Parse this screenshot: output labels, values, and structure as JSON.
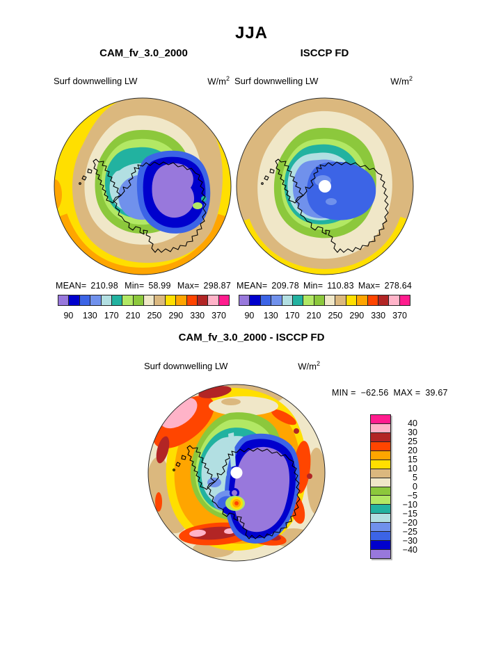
{
  "header": {
    "season_title": "JJA"
  },
  "panels": {
    "cam": {
      "title": "CAM_fv_3.0_2000",
      "var_label": "Surf downwelling LW",
      "units_base": "W/m",
      "units_exp": "2",
      "stats": {
        "mean_label": "MEAN=",
        "mean": "210.98",
        "min_label": "Min=",
        "min": "58.99",
        "max_label": "Max=",
        "max": "298.87"
      }
    },
    "isccp": {
      "title": "ISCCP FD",
      "var_label": "Surf downwelling LW",
      "units_base": "W/m",
      "units_exp": "2",
      "stats": {
        "mean_label": "MEAN=",
        "mean": "209.78",
        "min_label": "Min=",
        "min": "110.83",
        "max_label": "Max=",
        "max": "278.64"
      }
    },
    "diff": {
      "title": "CAM_fv_3.0_2000 - ISCCP FD",
      "var_label": "Surf downwelling LW",
      "units_base": "W/m",
      "units_exp": "2",
      "minmax": {
        "min_label": "MIN =",
        "min": "−62.56",
        "max_label": "MAX =",
        "max": "39.67"
      }
    }
  },
  "chart_data": [
    {
      "type": "heatmap",
      "subtype": "filled_contour_polar_map",
      "panel": "top_left",
      "title": "CAM_fv_3.0_2000",
      "variable": "Surf downwelling LW",
      "units": "W/m2",
      "season": "JJA",
      "projection": "south_polar_stereographic",
      "stats": {
        "mean": 210.98,
        "min": 58.99,
        "max": 298.87
      },
      "contour_levels": [
        90,
        110,
        130,
        150,
        170,
        190,
        210,
        230,
        250,
        270,
        290,
        310,
        330,
        350,
        370
      ],
      "colorbar_tick_labels": [
        "90",
        "130",
        "170",
        "210",
        "250",
        "290",
        "330",
        "370"
      ],
      "palette_low_to_high": [
        "#9878DC",
        "#0000CD",
        "#3C64E6",
        "#7091EC",
        "#B2DFE2",
        "#22B2A0",
        "#B2E864",
        "#8CC83C",
        "#F0E7C8",
        "#DBB87E",
        "#FFDF00",
        "#FFA500",
        "#FF4500",
        "#B22525",
        "#FFB3C8",
        "#FF1C8E"
      ]
    },
    {
      "type": "heatmap",
      "subtype": "filled_contour_polar_map",
      "panel": "top_right",
      "title": "ISCCP FD",
      "variable": "Surf downwelling LW",
      "units": "W/m2",
      "season": "JJA",
      "projection": "south_polar_stereographic",
      "pole_gap": true,
      "stats": {
        "mean": 209.78,
        "min": 110.83,
        "max": 278.64
      },
      "contour_levels": [
        90,
        110,
        130,
        150,
        170,
        190,
        210,
        230,
        250,
        270,
        290,
        310,
        330,
        350,
        370
      ],
      "colorbar_tick_labels": [
        "90",
        "130",
        "170",
        "210",
        "250",
        "290",
        "330",
        "370"
      ],
      "palette_low_to_high": [
        "#9878DC",
        "#0000CD",
        "#3C64E6",
        "#7091EC",
        "#B2DFE2",
        "#22B2A0",
        "#B2E864",
        "#8CC83C",
        "#F0E7C8",
        "#DBB87E",
        "#FFDF00",
        "#FFA500",
        "#FF4500",
        "#B22525",
        "#FFB3C8",
        "#FF1C8E"
      ]
    },
    {
      "type": "heatmap",
      "subtype": "filled_contour_polar_map",
      "panel": "bottom",
      "title": "CAM_fv_3.0_2000 - ISCCP FD",
      "variable": "Surf downwelling LW",
      "units": "W/m2",
      "season": "JJA",
      "projection": "south_polar_stereographic",
      "pole_gap": true,
      "stats": {
        "min": -62.56,
        "max": 39.67
      },
      "contour_levels": [
        -40,
        -30,
        -25,
        -20,
        -15,
        -10,
        -5,
        0,
        5,
        10,
        15,
        20,
        25,
        30,
        40
      ],
      "colorbar_labels_top_to_bottom": [
        "40",
        "30",
        "25",
        "20",
        "15",
        "10",
        "5",
        "0",
        "−5",
        "−10",
        "−15",
        "−20",
        "−25",
        "−30",
        "−40"
      ],
      "palette_low_to_high": [
        "#9878DC",
        "#0000CD",
        "#3C64E6",
        "#7091EC",
        "#B2DFE2",
        "#22B2A0",
        "#B2E864",
        "#8CC83C",
        "#F0E7C8",
        "#DBB87E",
        "#FFDF00",
        "#FFA500",
        "#FF4500",
        "#B22525",
        "#FFB3C8",
        "#FF1C8E"
      ]
    }
  ]
}
